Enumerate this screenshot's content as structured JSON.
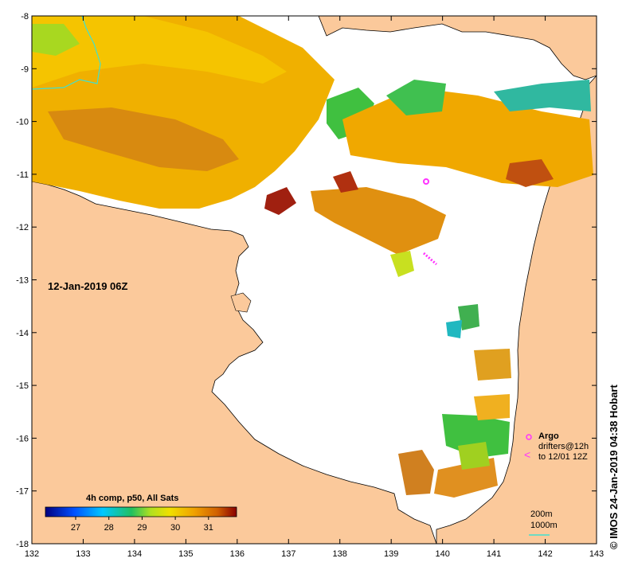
{
  "map": {
    "date_label": "12-Jan-2019 06Z",
    "credit": "© IMOS 24-Jan-2019 04:38 Hobart",
    "x_ticks": [
      "132",
      "133",
      "134",
      "135",
      "136",
      "137",
      "138",
      "139",
      "140",
      "141",
      "142",
      "143"
    ],
    "y_ticks": [
      "-8",
      "-9",
      "-10",
      "-11",
      "-12",
      "-13",
      "-14",
      "-15",
      "-16",
      "-17",
      "-18"
    ],
    "colors": {
      "land": "#fbc99b",
      "sea_nodata": "#ffffff",
      "isobath_1000m": "#40e0d0",
      "argo": "#ff33ff"
    }
  },
  "colorbar": {
    "title": "4h comp, p50, All Sats",
    "ticks": [
      "27",
      "28",
      "29",
      "30",
      "31"
    ]
  },
  "legend": {
    "argo_label": "Argo",
    "drifters_label": "drifters@12h",
    "drifters_range": "to 12/01 12Z",
    "isobath_200": "200m",
    "isobath_1000": "1000m"
  }
}
